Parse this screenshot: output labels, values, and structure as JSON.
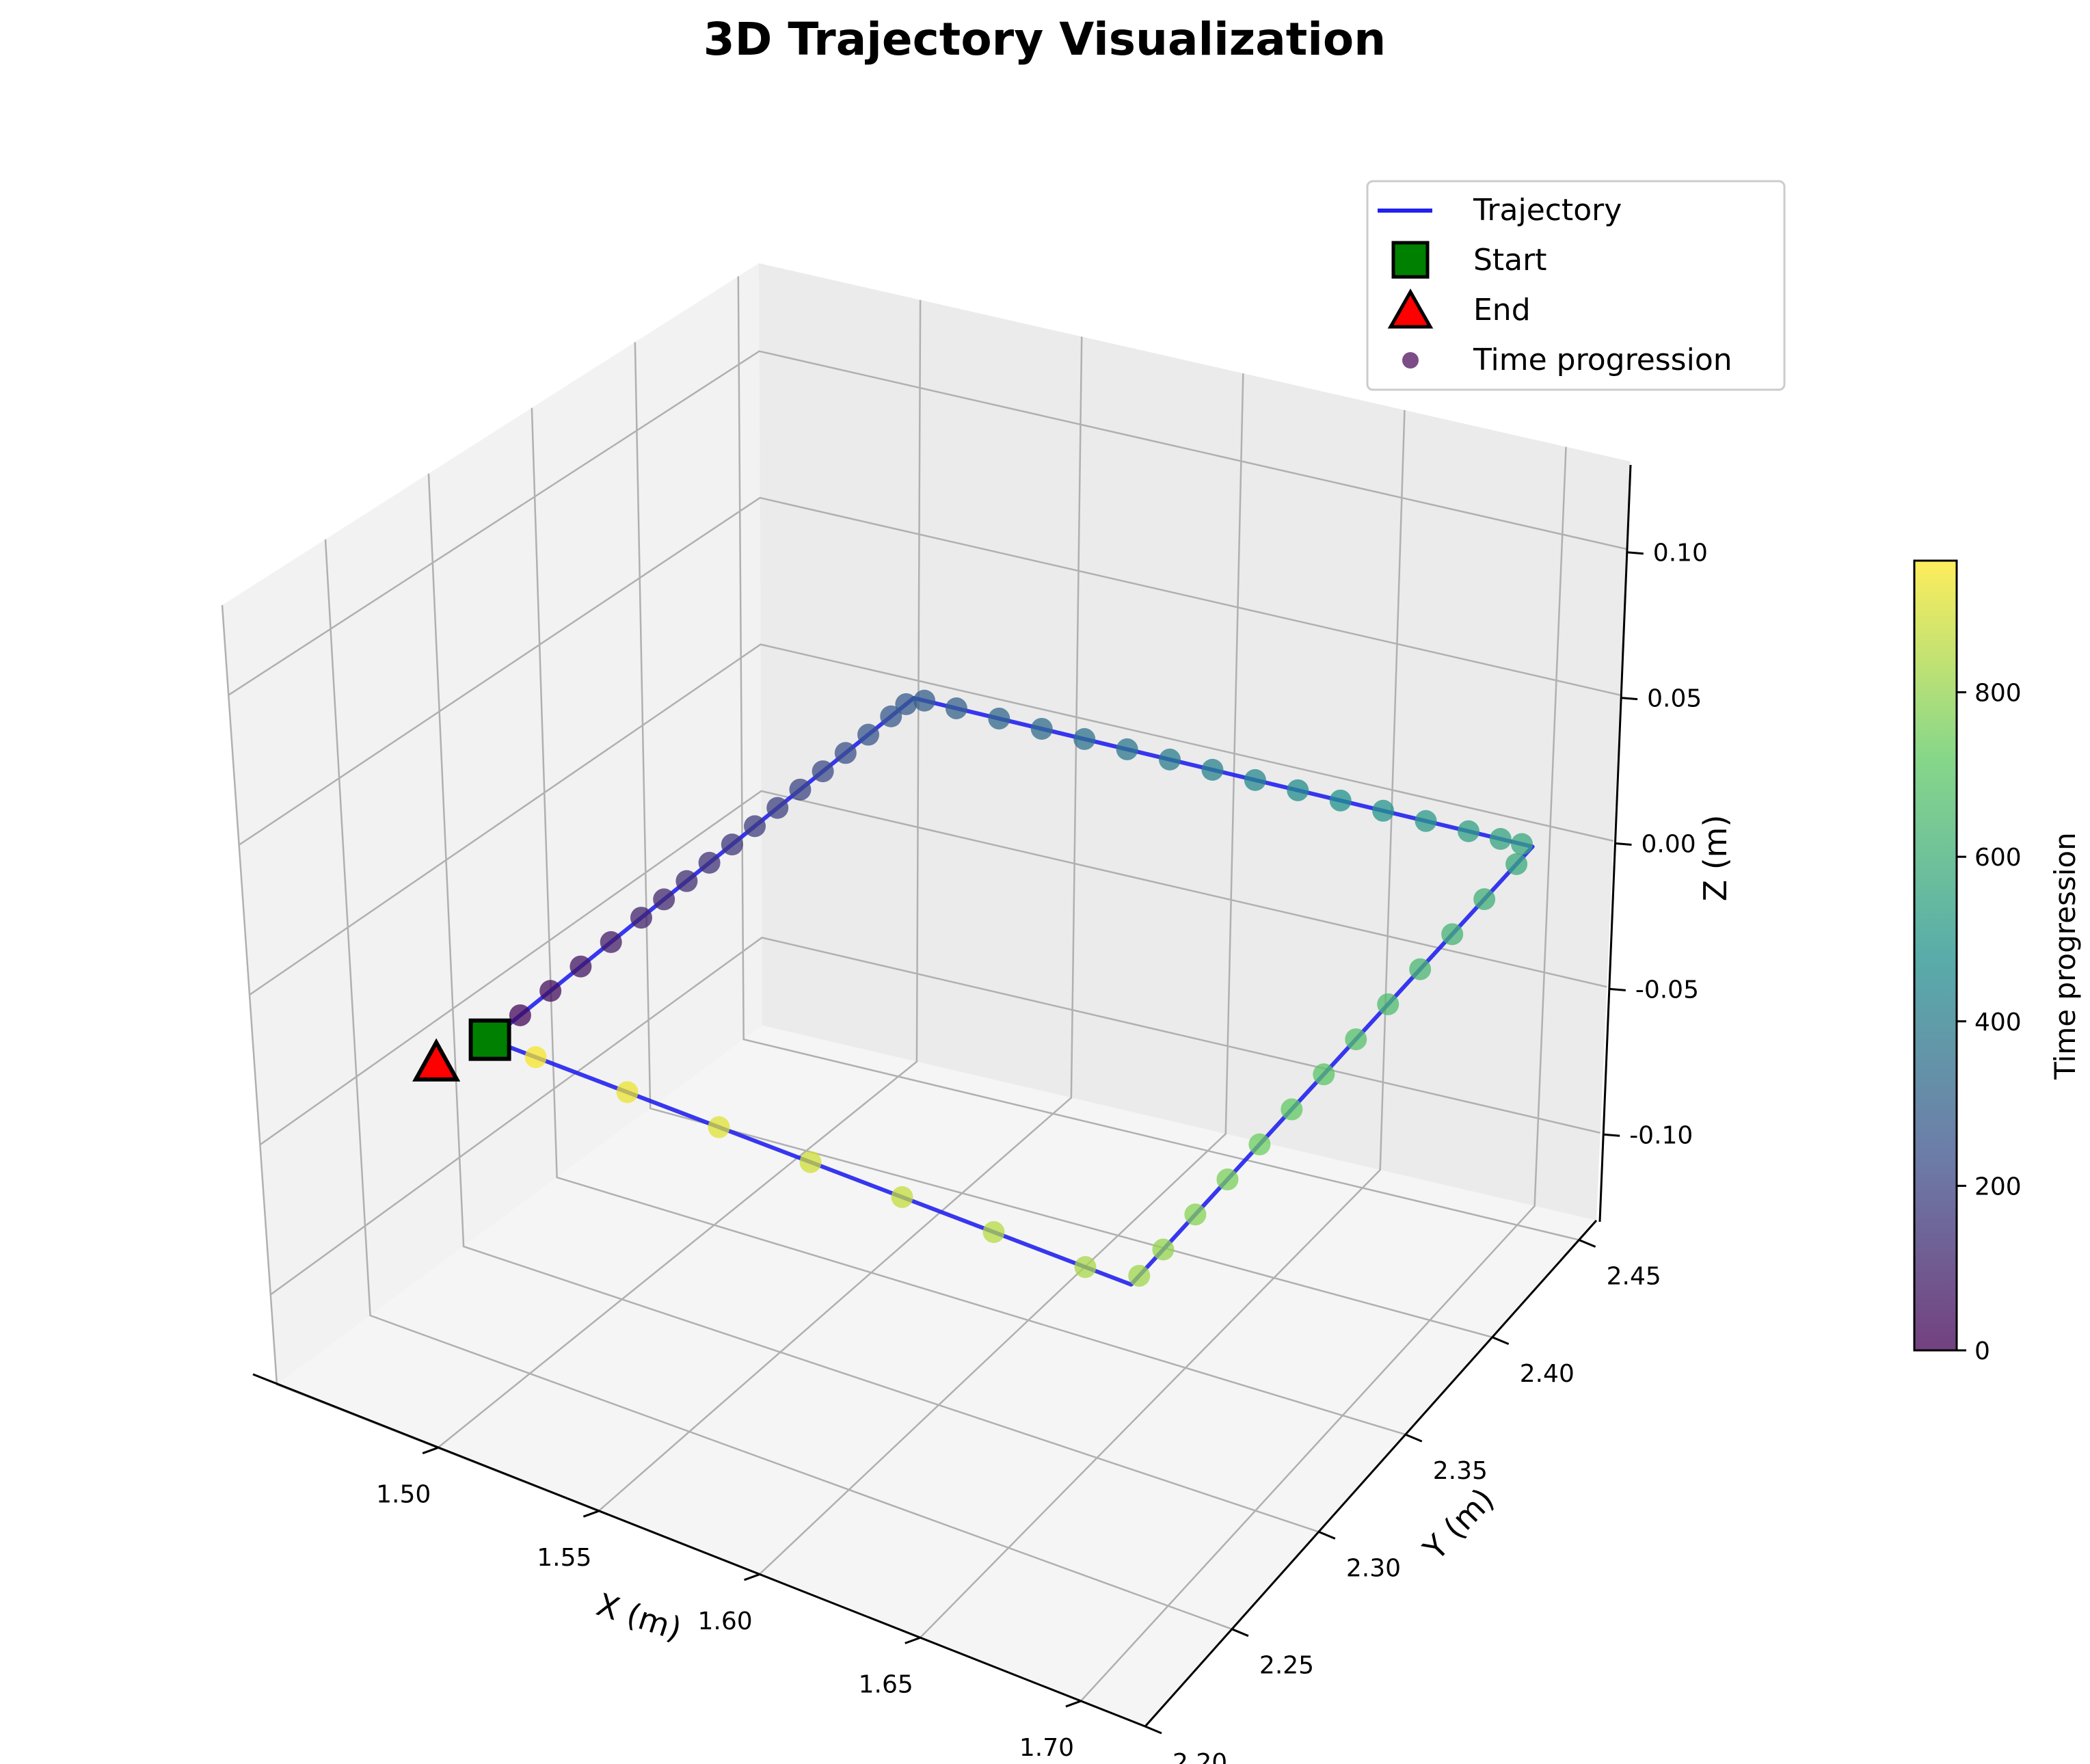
{
  "chart_data": {
    "type": "line",
    "title": "3D Trajectory Visualization",
    "xlabel": "X (m)",
    "ylabel": "Y (m)",
    "zlabel": "Z (m)",
    "xlim": [
      1.45,
      1.72
    ],
    "ylim": [
      2.2,
      2.46
    ],
    "zlim": [
      -0.13,
      0.13
    ],
    "x_ticks": [
      "1.50",
      "1.55",
      "1.60",
      "1.65",
      "1.70"
    ],
    "y_ticks": [
      "2.20",
      "2.25",
      "2.30",
      "2.35",
      "2.40",
      "2.45"
    ],
    "z_ticks": [
      "-0.10",
      "-0.05",
      "0.00",
      "0.05",
      "0.10"
    ],
    "grid": true,
    "legend_position": "top-right",
    "legend": [
      "Trajectory",
      "Start",
      "End",
      "Time progression"
    ],
    "colorbar": {
      "label": "Time progression",
      "ticks": [
        "0",
        "200",
        "400",
        "600",
        "800"
      ],
      "range": [
        0,
        960
      ],
      "colormap": "viridis"
    },
    "trajectory": {
      "color": "#2222ee",
      "corners": [
        {
          "t": 0,
          "x": 1.5,
          "y": 2.22,
          "z": 0.0
        },
        {
          "t": 280,
          "x": 1.5,
          "y": 2.45,
          "z": 0.0
        },
        {
          "t": 570,
          "x": 1.7,
          "y": 2.45,
          "z": 0.0
        },
        {
          "t": 820,
          "x": 1.7,
          "y": 2.22,
          "z": 0.0
        },
        {
          "t": 960,
          "x": 1.5,
          "y": 2.22,
          "z": 0.0
        }
      ],
      "time_samples": [
        0,
        20,
        40,
        60,
        80,
        100,
        115,
        130,
        145,
        160,
        175,
        190,
        205,
        220,
        235,
        250,
        265,
        275,
        285,
        300,
        320,
        340,
        360,
        380,
        400,
        420,
        440,
        460,
        480,
        500,
        520,
        540,
        555,
        565,
        580,
        600,
        620,
        640,
        660,
        680,
        700,
        720,
        740,
        760,
        780,
        800,
        815,
        830,
        850,
        870,
        890,
        910,
        930,
        950
      ]
    },
    "start": {
      "x": 1.5,
      "y": 2.22,
      "z": 0.0,
      "marker": "square",
      "color": "#008000"
    },
    "end": {
      "x": 1.495,
      "y": 2.22,
      "z": 0.0,
      "marker": "triangle",
      "color": "#ff0000"
    }
  }
}
